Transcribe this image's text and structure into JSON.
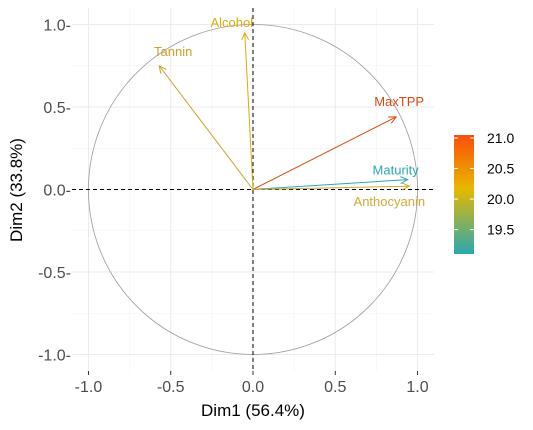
{
  "chart_data": {
    "type": "pca-variable-correlation-circle",
    "xlabel": "Dim1 (56.4%)",
    "ylabel": "Dim2 (33.8%)",
    "xlim": [
      -1.1,
      1.1
    ],
    "ylim": [
      -1.1,
      1.1
    ],
    "x_ticks": [
      -1.0,
      -0.5,
      0.0,
      0.5,
      1.0
    ],
    "x_tick_labels": [
      "-1.0",
      "-0.5",
      "0.0",
      "0.5",
      "1.0"
    ],
    "y_ticks": [
      -1.0,
      -0.5,
      0.0,
      0.5,
      1.0
    ],
    "y_tick_labels": [
      "-1.0-",
      "-0.5-",
      "0.0-",
      "0.5-",
      "1.0-"
    ],
    "grid": true,
    "unit_circle": true,
    "variables": [
      {
        "name": "Tannin",
        "x": -0.57,
        "y": 0.75,
        "contrib": 19.75,
        "color": "#c9a227"
      },
      {
        "name": "Alcohol",
        "x": -0.05,
        "y": 0.95,
        "contrib": 20.35,
        "color": "#d9ac10"
      },
      {
        "name": "MaxTPP",
        "x": 0.87,
        "y": 0.44,
        "contrib": 21.0,
        "color": "#e0470c"
      },
      {
        "name": "Maturity",
        "x": 0.94,
        "y": 0.06,
        "contrib": 19.1,
        "color": "#2aa8b2"
      },
      {
        "name": "Anthocyanin",
        "x": 0.95,
        "y": 0.02,
        "contrib": 19.9,
        "color": "#d1a936"
      }
    ],
    "legend": {
      "position": "right",
      "title": "",
      "ticks": [
        19.5,
        20.0,
        20.5,
        21.0
      ],
      "tick_labels": [
        "19.5",
        "20.0",
        "20.5",
        "21.0"
      ],
      "range": [
        19.1,
        21.05
      ],
      "colors": [
        "#2aa8b2",
        "#e7b800",
        "#fc4e07"
      ]
    }
  }
}
